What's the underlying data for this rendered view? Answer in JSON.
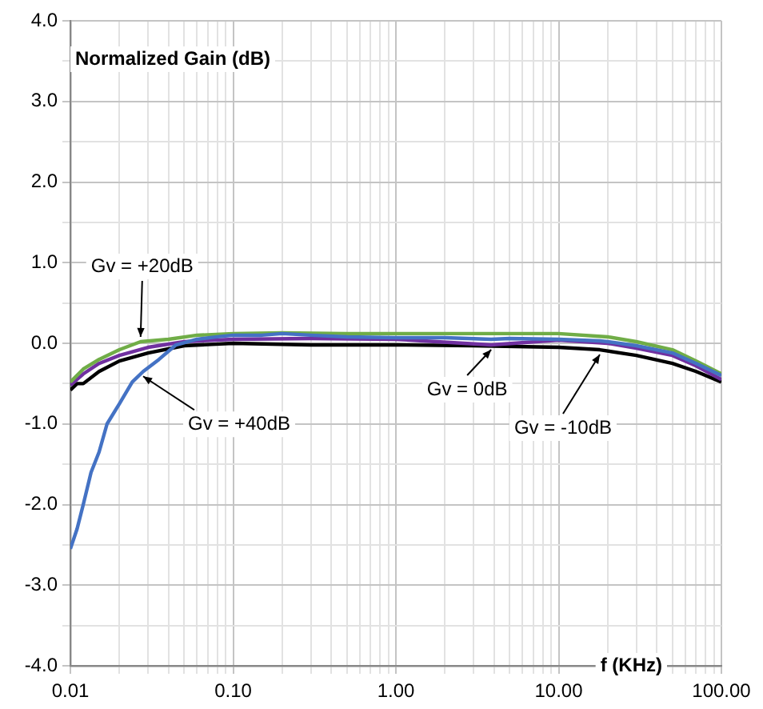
{
  "chart_data": {
    "type": "line",
    "xlabel": "f (KHz)",
    "ylabel": "Normalized Gain (dB)",
    "log": "x",
    "grid": true,
    "legend": false,
    "marker": "none",
    "line_style": "solid",
    "xlim": [
      0.01,
      100
    ],
    "ylim": [
      -4,
      4
    ],
    "xticks": [
      {
        "value": 0.01,
        "label": "0.01"
      },
      {
        "value": 0.02,
        "label": null
      },
      {
        "value": 0.03,
        "label": null
      },
      {
        "value": 0.04,
        "label": null
      },
      {
        "value": 0.05,
        "label": null
      },
      {
        "value": 0.06,
        "label": null
      },
      {
        "value": 0.07,
        "label": null
      },
      {
        "value": 0.08,
        "label": null
      },
      {
        "value": 0.09,
        "label": null
      },
      {
        "value": 0.1,
        "label": "0.10"
      },
      {
        "value": 0.2,
        "label": null
      },
      {
        "value": 0.3,
        "label": null
      },
      {
        "value": 0.4,
        "label": null
      },
      {
        "value": 0.5,
        "label": null
      },
      {
        "value": 0.6,
        "label": null
      },
      {
        "value": 0.7,
        "label": null
      },
      {
        "value": 0.8,
        "label": null
      },
      {
        "value": 0.9,
        "label": null
      },
      {
        "value": 1,
        "label": "1.00"
      },
      {
        "value": 2,
        "label": null
      },
      {
        "value": 3,
        "label": null
      },
      {
        "value": 4,
        "label": null
      },
      {
        "value": 5,
        "label": null
      },
      {
        "value": 6,
        "label": null
      },
      {
        "value": 7,
        "label": null
      },
      {
        "value": 8,
        "label": null
      },
      {
        "value": 9,
        "label": null
      },
      {
        "value": 10,
        "label": "10.00"
      },
      {
        "value": 20,
        "label": null
      },
      {
        "value": 30,
        "label": null
      },
      {
        "value": 40,
        "label": null
      },
      {
        "value": 50,
        "label": null
      },
      {
        "value": 60,
        "label": null
      },
      {
        "value": 70,
        "label": null
      },
      {
        "value": 80,
        "label": null
      },
      {
        "value": 90,
        "label": null
      },
      {
        "value": 100,
        "label": "100.00"
      }
    ],
    "yticks": [
      {
        "value": -4,
        "label": "-4.0"
      },
      {
        "value": -3.5,
        "label": null
      },
      {
        "value": -3,
        "label": "-3.0"
      },
      {
        "value": -2.5,
        "label": null
      },
      {
        "value": -2,
        "label": "-2.0"
      },
      {
        "value": -1.5,
        "label": null
      },
      {
        "value": -1,
        "label": "-1.0"
      },
      {
        "value": -0.5,
        "label": null
      },
      {
        "value": 0,
        "label": "0.0"
      },
      {
        "value": 0.5,
        "label": null
      },
      {
        "value": 1,
        "label": "1.0"
      },
      {
        "value": 1.5,
        "label": null
      },
      {
        "value": 2,
        "label": "2.0"
      },
      {
        "value": 2.5,
        "label": null
      },
      {
        "value": 3,
        "label": "3.0"
      },
      {
        "value": 3.5,
        "label": null
      },
      {
        "value": 4,
        "label": "4.0"
      }
    ],
    "annotations": [
      {
        "text": "Gv = +40dB",
        "x": 0.028,
        "y": -0.35
      },
      {
        "text": "Gv = +20dB",
        "x": 0.027,
        "y": 0.02
      },
      {
        "text": "Gv = 0dB",
        "x": 3.85,
        "y": -0.02
      },
      {
        "text": "Gv = -10dB",
        "x": 17.9,
        "y": -0.08
      }
    ],
    "series": [
      {
        "color": "#4472c4",
        "x": [
          0.01,
          0.011,
          0.012,
          0.0134,
          0.015,
          0.0168,
          0.02,
          0.024,
          0.028,
          0.035,
          0.0445,
          0.06,
          0.08,
          0.1,
          0.15,
          0.2,
          0.3,
          0.5,
          1,
          2,
          3.85,
          5,
          10,
          17.9,
          20,
          30,
          50,
          70,
          100
        ],
        "values": [
          -2.55,
          -2.3,
          -2.0,
          -1.6,
          -1.35,
          -1.0,
          -0.75,
          -0.48,
          -0.35,
          -0.2,
          -0.02,
          0.05,
          0.08,
          0.1,
          0.1,
          0.12,
          0.1,
          0.08,
          0.07,
          0.07,
          0.05,
          0.06,
          0.05,
          0.03,
          0.02,
          -0.03,
          -0.12,
          -0.25,
          -0.4
        ]
      },
      {
        "color": "#70ad47",
        "x": [
          0.01,
          0.012,
          0.015,
          0.02,
          0.027,
          0.04,
          0.06,
          0.1,
          0.2,
          0.5,
          1,
          2,
          5,
          10,
          20,
          30,
          50,
          70,
          100
        ],
        "values": [
          -0.48,
          -0.32,
          -0.2,
          -0.08,
          0.02,
          0.05,
          0.1,
          0.12,
          0.13,
          0.12,
          0.12,
          0.12,
          0.12,
          0.12,
          0.08,
          0.02,
          -0.08,
          -0.22,
          -0.38
        ]
      },
      {
        "color": "#7030a0",
        "x": [
          0.01,
          0.012,
          0.015,
          0.02,
          0.03,
          0.05,
          0.1,
          0.3,
          1,
          3.85,
          10,
          20,
          30,
          50,
          70,
          100
        ],
        "values": [
          -0.52,
          -0.38,
          -0.25,
          -0.15,
          -0.05,
          0.02,
          0.05,
          0.06,
          0.05,
          -0.02,
          0.04,
          0.0,
          -0.06,
          -0.15,
          -0.28,
          -0.45
        ]
      },
      {
        "color": "#000000",
        "x": [
          0.01,
          0.011,
          0.012,
          0.015,
          0.02,
          0.03,
          0.05,
          0.1,
          0.3,
          1,
          3,
          10,
          17.9,
          30,
          50,
          70,
          100
        ],
        "values": [
          -0.58,
          -0.5,
          -0.5,
          -0.35,
          -0.22,
          -0.12,
          -0.03,
          0.0,
          -0.02,
          -0.02,
          -0.03,
          -0.05,
          -0.08,
          -0.15,
          -0.25,
          -0.35,
          -0.48
        ]
      }
    ]
  }
}
